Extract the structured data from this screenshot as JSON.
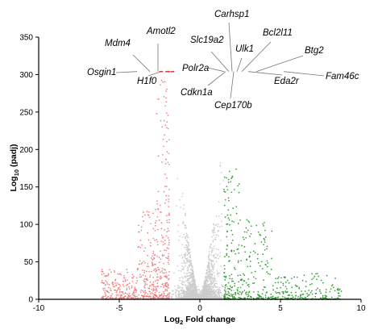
{
  "chart_data": {
    "type": "scatter",
    "title": "",
    "xlabel": {
      "prefix": "Log",
      "sub": "2",
      "suffix": " Fold change"
    },
    "ylabel": {
      "prefix": "Log",
      "sub": "10",
      "suffix": " (padj)"
    },
    "xlim": [
      -10,
      10
    ],
    "ylim": [
      0,
      350
    ],
    "xticks": [
      -10,
      -5,
      0,
      5,
      10
    ],
    "yticks": [
      0,
      50,
      100,
      150,
      200,
      250,
      300,
      350
    ],
    "grid": false,
    "colors": {
      "down": "#f08080",
      "nonsig": "#cccccc",
      "up": "#2e9c2e",
      "capped": "#e04040"
    },
    "series": [
      {
        "key": "nonsig",
        "color": "#cccccc"
      },
      {
        "key": "down",
        "color": "#f08080"
      },
      {
        "key": "up",
        "color": "#2e9c2e"
      }
    ],
    "capped_value": 304,
    "annotations": [
      {
        "label": "Osgin1",
        "x": -3.9,
        "y": 304
      },
      {
        "label": "Mdm4",
        "x": -3.1,
        "y": 304
      },
      {
        "label": "Amotl2",
        "x": -2.6,
        "y": 304
      },
      {
        "label": "H1f0",
        "x": -2.4,
        "y": 304
      },
      {
        "label": "Polr2a",
        "x": 1.5,
        "y": 304
      },
      {
        "label": "Cdkn1a",
        "x": 1.6,
        "y": 304
      },
      {
        "label": "Slc19a2",
        "x": 1.8,
        "y": 304
      },
      {
        "label": "Carhsp1",
        "x": 2.0,
        "y": 304
      },
      {
        "label": "Cep170b",
        "x": 2.1,
        "y": 304
      },
      {
        "label": "Ulk1",
        "x": 2.3,
        "y": 304
      },
      {
        "label": "Bcl2l11",
        "x": 2.6,
        "y": 304
      },
      {
        "label": "Eda2r",
        "x": 3.0,
        "y": 304
      },
      {
        "label": "Btg2",
        "x": 3.5,
        "y": 304
      },
      {
        "label": "Fam46c",
        "x": 5.2,
        "y": 304
      }
    ]
  }
}
